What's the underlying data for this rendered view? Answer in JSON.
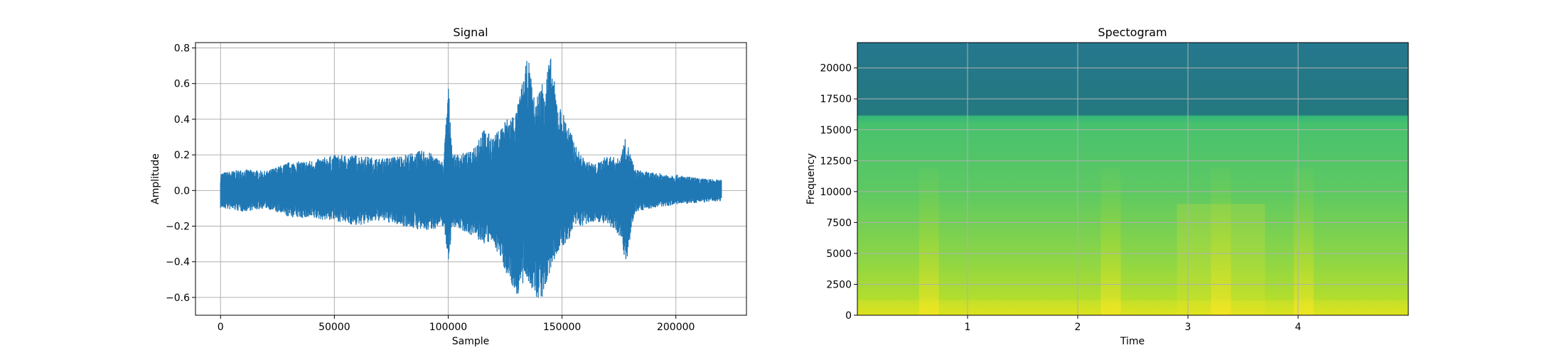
{
  "chart_data": [
    {
      "type": "line",
      "title": "Signal",
      "xlabel": "Sample",
      "ylabel": "Amplitude",
      "xlim": [
        -11000,
        231000
      ],
      "ylim": [
        -0.7,
        0.83
      ],
      "grid": true,
      "color": "#1f77b4",
      "x_ticks": [
        0,
        50000,
        100000,
        150000,
        200000
      ],
      "x_tick_labels": [
        "0",
        "50000",
        "100000",
        "150000",
        "200000"
      ],
      "y_ticks": [
        -0.6,
        -0.4,
        -0.2,
        0.0,
        0.2,
        0.4,
        0.6,
        0.8
      ],
      "y_tick_labels": [
        "−0.6",
        "−0.4",
        "−0.2",
        "0.0",
        "0.2",
        "0.4",
        "0.6",
        "0.8"
      ],
      "envelope": {
        "x": [
          0,
          10000,
          20000,
          30000,
          40000,
          50000,
          60000,
          70000,
          80000,
          90000,
          98000,
          100000,
          102000,
          110000,
          115000,
          120000,
          125000,
          130000,
          135000,
          138000,
          142000,
          145000,
          148000,
          152000,
          156000,
          160000,
          165000,
          170000,
          175000,
          178000,
          182000,
          190000,
          200000,
          210000,
          220000
        ],
        "upper": [
          0.1,
          0.12,
          0.11,
          0.16,
          0.17,
          0.2,
          0.2,
          0.18,
          0.2,
          0.23,
          0.16,
          0.61,
          0.2,
          0.22,
          0.35,
          0.3,
          0.4,
          0.45,
          0.76,
          0.5,
          0.65,
          0.75,
          0.5,
          0.4,
          0.25,
          0.17,
          0.15,
          0.2,
          0.18,
          0.3,
          0.12,
          0.1,
          0.09,
          0.07,
          0.06
        ],
        "lower": [
          -0.1,
          -0.12,
          -0.1,
          -0.15,
          -0.16,
          -0.17,
          -0.2,
          -0.17,
          -0.2,
          -0.23,
          -0.2,
          -0.4,
          -0.2,
          -0.25,
          -0.3,
          -0.3,
          -0.45,
          -0.6,
          -0.5,
          -0.62,
          -0.6,
          -0.45,
          -0.35,
          -0.3,
          -0.2,
          -0.2,
          -0.17,
          -0.2,
          -0.25,
          -0.42,
          -0.12,
          -0.1,
          -0.08,
          -0.07,
          -0.06
        ]
      }
    },
    {
      "type": "heatmap",
      "title": "Spectogram",
      "xlabel": "Time",
      "ylabel": "Frequency",
      "xlim": [
        0,
        5.0
      ],
      "ylim": [
        0,
        22050
      ],
      "grid": true,
      "x_ticks": [
        1,
        2,
        3,
        4
      ],
      "x_tick_labels": [
        "1",
        "2",
        "3",
        "4"
      ],
      "y_ticks": [
        0,
        2500,
        5000,
        7500,
        10000,
        12500,
        15000,
        17500,
        20000
      ],
      "y_tick_labels": [
        "0",
        "2500",
        "5000",
        "7500",
        "10000",
        "12500",
        "15000",
        "17500",
        "20000"
      ],
      "colormap": "viridis",
      "cutoff_frequency": 16200,
      "bright_bands_time": [
        0.65,
        2.3,
        3.3,
        4.05
      ]
    }
  ]
}
